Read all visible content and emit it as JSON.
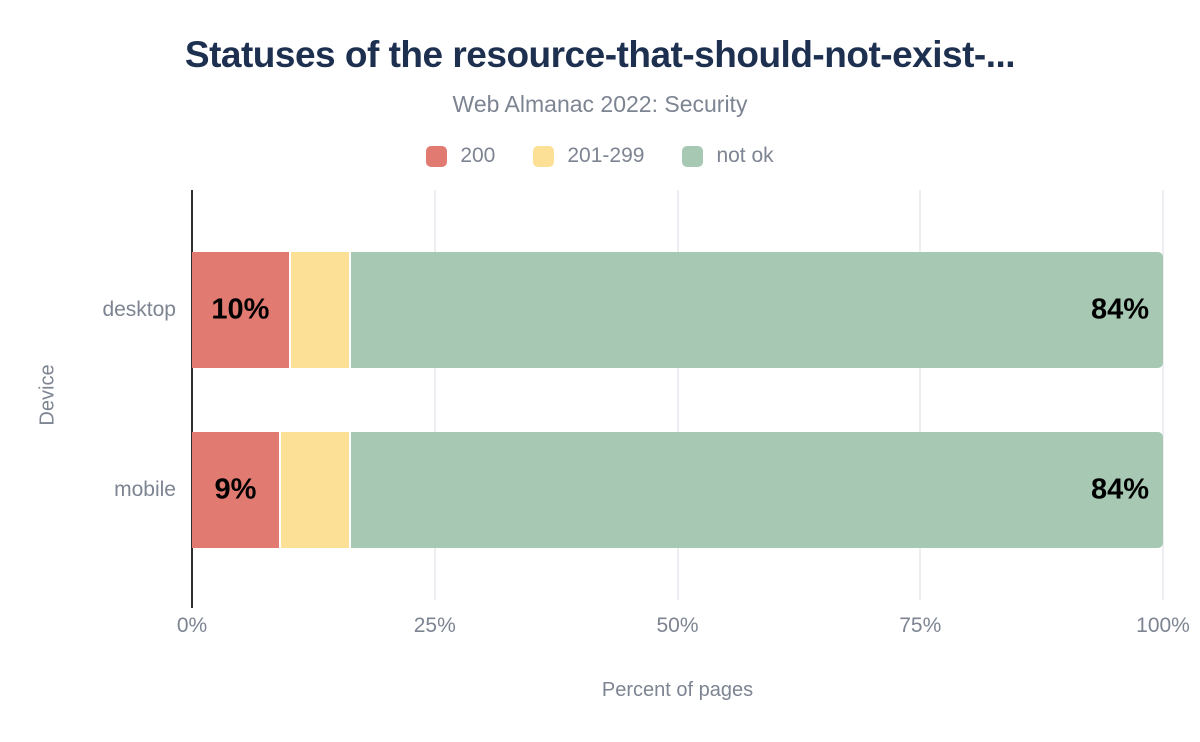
{
  "chart_data": {
    "type": "bar",
    "orientation": "horizontal",
    "stacked": true,
    "title": "Statuses of the resource-that-should-not-exist-...",
    "subtitle": "Web Almanac 2022: Security",
    "categories": [
      "desktop",
      "mobile"
    ],
    "series": [
      {
        "name": "200",
        "color": "#e17b72",
        "values": [
          10,
          9
        ],
        "data_labels": [
          "10%",
          "9%"
        ]
      },
      {
        "name": "201-299",
        "color": "#fbe095",
        "values": [
          6,
          7
        ],
        "data_labels": [
          "",
          ""
        ]
      },
      {
        "name": "not ok",
        "color": "#a7c9b4",
        "values": [
          84,
          84
        ],
        "data_labels": [
          "84%",
          "84%"
        ]
      }
    ],
    "xlabel": "Percent of pages",
    "ylabel": "Device",
    "xticks": [
      "0%",
      "25%",
      "50%",
      "75%",
      "100%"
    ],
    "xlim": [
      0,
      100
    ],
    "grid": true,
    "legend_position": "top"
  },
  "colors": {
    "title_text": "#1e3050",
    "muted_text": "#7d8492",
    "gridline": "#eceef1",
    "axis_line": "#2f2f2f",
    "bar_value_label": "#000000",
    "background": "#ffffff"
  }
}
